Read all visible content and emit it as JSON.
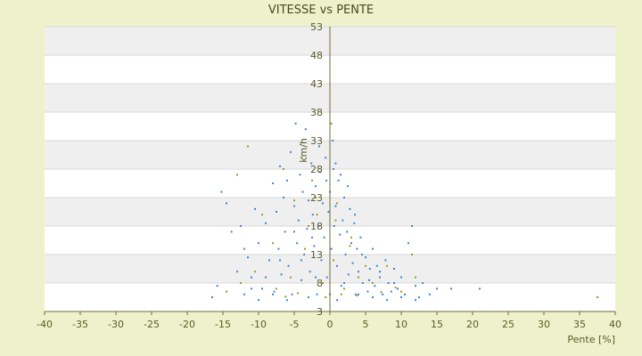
{
  "chart_data": {
    "type": "scatter",
    "title": "VITESSE vs PENTE",
    "xlabel": "Pente [%]",
    "ylabel": "km/h",
    "xlim": [
      -40,
      40
    ],
    "ylim": [
      3,
      53
    ],
    "x_ticks": [
      -40,
      -35,
      -30,
      -25,
      -20,
      -15,
      -10,
      -5,
      0,
      5,
      10,
      15,
      20,
      25,
      30,
      35,
      40
    ],
    "y_ticks": [
      3,
      8,
      13,
      18,
      23,
      28,
      33,
      38,
      43,
      48,
      53
    ],
    "grid": true,
    "background_bands": "alternating",
    "series": [
      {
        "color": "#3a86d4",
        "points": [
          [
            -16.5,
            5.5
          ],
          [
            -15.8,
            7.5
          ],
          [
            -15.2,
            24
          ],
          [
            -14.5,
            22
          ],
          [
            -13.8,
            17
          ],
          [
            -13,
            10
          ],
          [
            -12.5,
            18
          ],
          [
            -12,
            14
          ],
          [
            -11.5,
            12.5
          ],
          [
            -11,
            9
          ],
          [
            -10.5,
            21
          ],
          [
            -10,
            15
          ],
          [
            -9.5,
            7
          ],
          [
            -9,
            18.5
          ],
          [
            -8.5,
            12
          ],
          [
            -8,
            25.5
          ],
          [
            -7.8,
            6.5
          ],
          [
            -7.5,
            20.5
          ],
          [
            -7.2,
            14
          ],
          [
            -7,
            28.5
          ],
          [
            -6.8,
            9.5
          ],
          [
            -6.5,
            23
          ],
          [
            -6.3,
            17
          ],
          [
            -6,
            26
          ],
          [
            -5.8,
            11
          ],
          [
            -5.5,
            31
          ],
          [
            -5.3,
            6
          ],
          [
            -5,
            21.5
          ],
          [
            -4.8,
            36
          ],
          [
            -4.6,
            15
          ],
          [
            -4.4,
            19
          ],
          [
            -4.2,
            27
          ],
          [
            -4,
            8.5
          ],
          [
            -3.8,
            24
          ],
          [
            -3.6,
            13
          ],
          [
            -3.4,
            35
          ],
          [
            -3.2,
            17.5
          ],
          [
            -3,
            22.5
          ],
          [
            -2.8,
            10
          ],
          [
            -2.6,
            29
          ],
          [
            -2.4,
            20
          ],
          [
            -2.2,
            14.5
          ],
          [
            -2,
            25
          ],
          [
            -1.8,
            6
          ],
          [
            -1.6,
            18
          ],
          [
            -1.4,
            27.5
          ],
          [
            -1.2,
            12
          ],
          [
            -1,
            22
          ],
          [
            -0.8,
            16
          ],
          [
            -0.6,
            30
          ],
          [
            -0.4,
            9
          ],
          [
            -0.2,
            20.5
          ],
          [
            0,
            24
          ],
          [
            0.2,
            14
          ],
          [
            0.4,
            33
          ],
          [
            0.6,
            18
          ],
          [
            0.8,
            21.5
          ],
          [
            1,
            11
          ],
          [
            1.2,
            26
          ],
          [
            1.4,
            16.5
          ],
          [
            1.6,
            7.5
          ],
          [
            1.8,
            19
          ],
          [
            2,
            23
          ],
          [
            2.2,
            13
          ],
          [
            2.4,
            17
          ],
          [
            2.6,
            9.5
          ],
          [
            2.8,
            21
          ],
          [
            3,
            15
          ],
          [
            3.2,
            11.5
          ],
          [
            3.4,
            18.5
          ],
          [
            3.6,
            6
          ],
          [
            3.8,
            14
          ],
          [
            4,
            10
          ],
          [
            4.3,
            16
          ],
          [
            4.6,
            8
          ],
          [
            5,
            12.5
          ],
          [
            5.3,
            6.5
          ],
          [
            5.6,
            10.5
          ],
          [
            6,
            14
          ],
          [
            6.3,
            7.5
          ],
          [
            6.6,
            11
          ],
          [
            7,
            9
          ],
          [
            7.4,
            6
          ],
          [
            7.8,
            12
          ],
          [
            8.2,
            8
          ],
          [
            8.6,
            6.5
          ],
          [
            9,
            10.5
          ],
          [
            9.5,
            7
          ],
          [
            10,
            9
          ],
          [
            10.5,
            6
          ],
          [
            11,
            15
          ],
          [
            11.5,
            18
          ],
          [
            12,
            7.5
          ],
          [
            12.5,
            5.5
          ],
          [
            13,
            8
          ],
          [
            14,
            6
          ],
          [
            15,
            7
          ],
          [
            17,
            7
          ],
          [
            21,
            7
          ],
          [
            0.5,
            28
          ],
          [
            -1.5,
            32
          ],
          [
            1.5,
            27
          ],
          [
            -0.5,
            26
          ],
          [
            0.8,
            29
          ],
          [
            2.5,
            25
          ],
          [
            -2.5,
            16
          ],
          [
            3.5,
            20
          ],
          [
            4.5,
            13
          ],
          [
            5.5,
            8.5
          ],
          [
            1,
            5
          ],
          [
            -3,
            5.5
          ],
          [
            -6,
            5
          ],
          [
            -8,
            6
          ],
          [
            -10,
            5
          ],
          [
            -12,
            6
          ],
          [
            6,
            5.5
          ],
          [
            8,
            5
          ],
          [
            10,
            5.5
          ],
          [
            12,
            5
          ],
          [
            -4,
            12
          ],
          [
            -2,
            9
          ],
          [
            0,
            6
          ],
          [
            2,
            8
          ],
          [
            4,
            6
          ],
          [
            -5,
            17
          ],
          [
            -7,
            12
          ],
          [
            -9,
            9
          ],
          [
            -11,
            7
          ],
          [
            7,
            10
          ],
          [
            9,
            8
          ]
        ]
      },
      {
        "color": "#9a9a1e",
        "points": [
          [
            37.5,
            5.5
          ],
          [
            0.2,
            36
          ],
          [
            -11.5,
            32
          ],
          [
            -13,
            27
          ],
          [
            -6.5,
            28
          ],
          [
            -4,
            30
          ],
          [
            -2,
            23
          ],
          [
            1,
            22
          ],
          [
            3,
            16
          ],
          [
            5,
            11
          ],
          [
            -8,
            15
          ],
          [
            -9.5,
            20
          ],
          [
            -10.5,
            10
          ],
          [
            -3.5,
            14
          ],
          [
            -1,
            8
          ],
          [
            0.5,
            12
          ],
          [
            2,
            7
          ],
          [
            4,
            9
          ],
          [
            6,
            8
          ],
          [
            8,
            11
          ],
          [
            10,
            6.5
          ],
          [
            12,
            9
          ],
          [
            -5.5,
            9
          ],
          [
            -7.5,
            7
          ],
          [
            -12.5,
            8
          ],
          [
            -14.5,
            6.5
          ],
          [
            -2.5,
            26
          ],
          [
            0.8,
            19
          ],
          [
            -1.8,
            20
          ],
          [
            2.8,
            14.5
          ],
          [
            -0.6,
            5.5
          ],
          [
            1.6,
            6
          ],
          [
            3.8,
            5.8
          ],
          [
            -4.5,
            6.2
          ],
          [
            -6.2,
            5.6
          ],
          [
            7.2,
            6.4
          ],
          [
            9.2,
            7.2
          ],
          [
            11.5,
            13
          ],
          [
            -3,
            18
          ],
          [
            -5,
            22.5
          ]
        ]
      }
    ]
  }
}
